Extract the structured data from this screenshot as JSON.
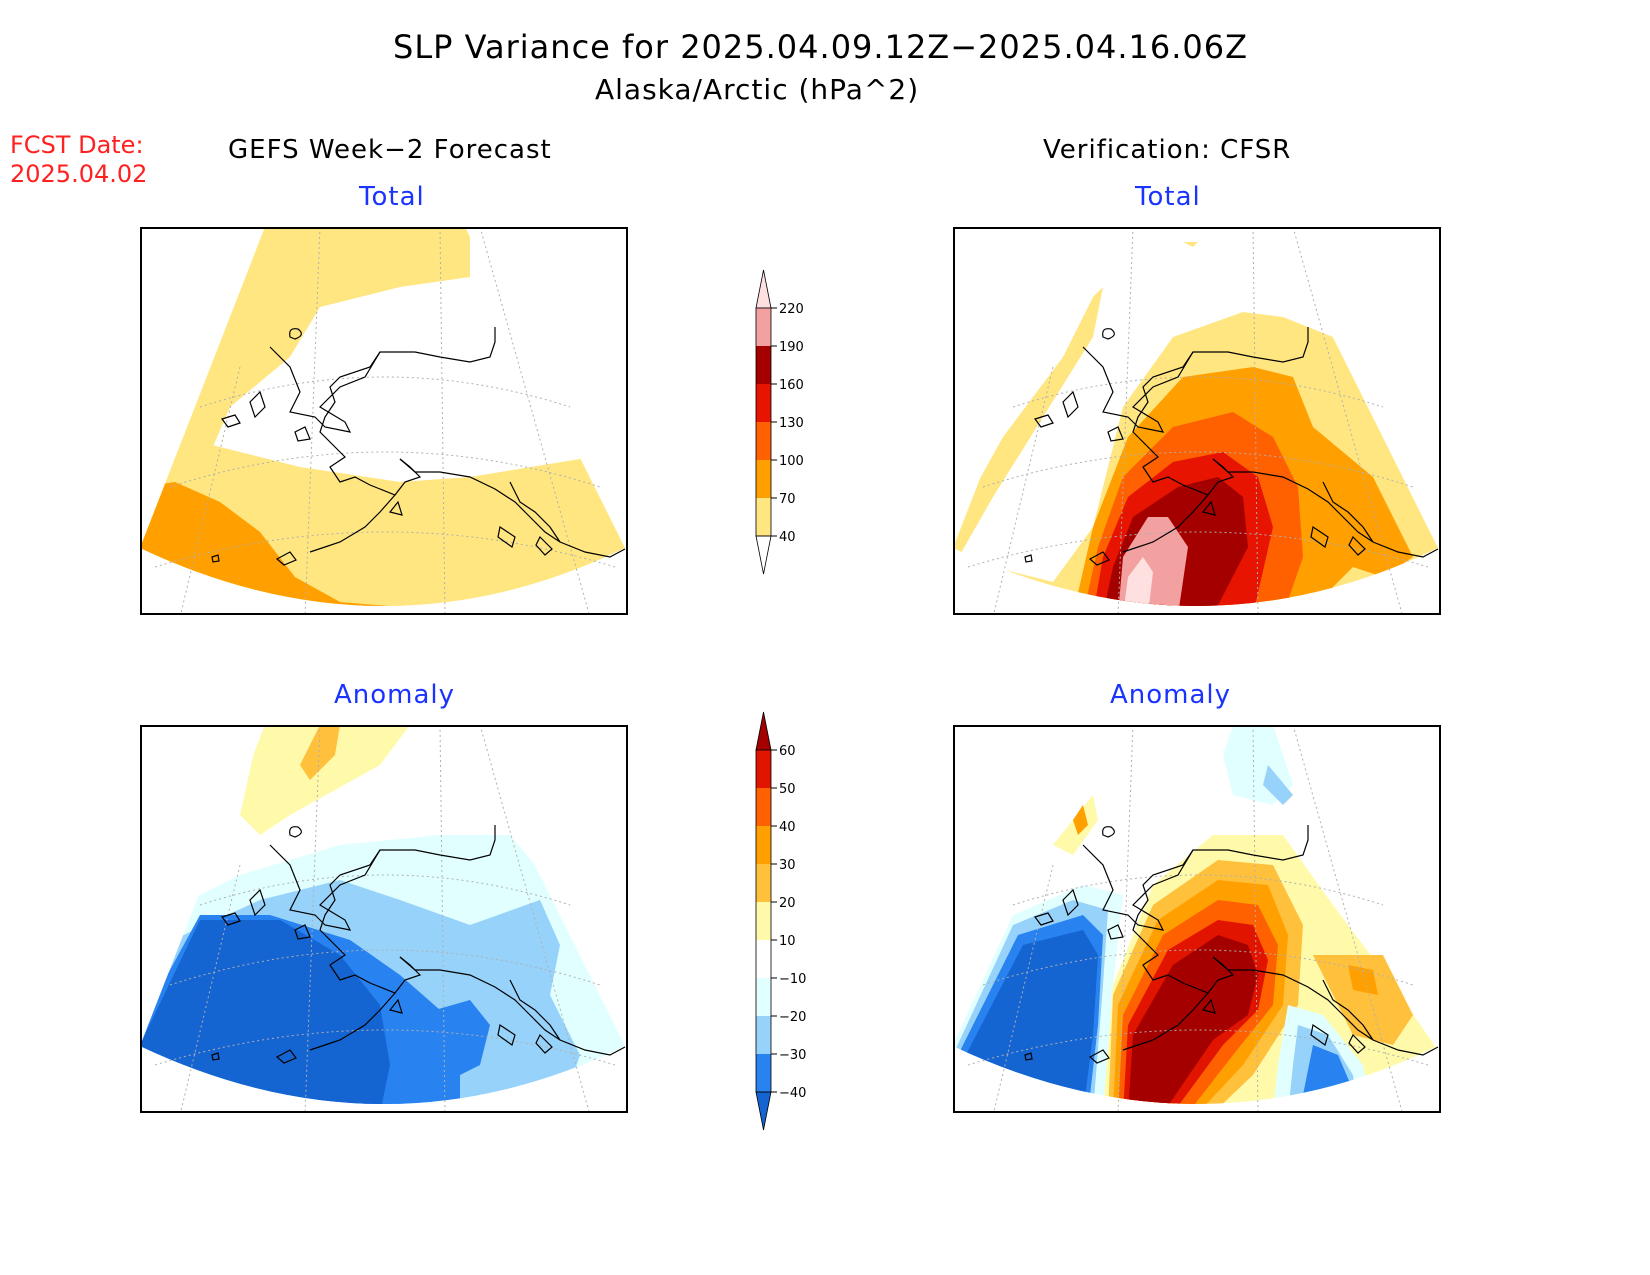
{
  "header": {
    "title": "SLP Variance for 2025.04.09.12Z−2025.04.16.06Z",
    "subtitle": "Alaska/Arctic (hPa^2)"
  },
  "forecast": {
    "label": "FCST Date:",
    "date": "2025.04.02"
  },
  "columns": {
    "left": "GEFS Week−2 Forecast",
    "right": "Verification: CFSR"
  },
  "panels": {
    "total_label": "Total",
    "anomaly_label": "Anomaly"
  },
  "colorbars": {
    "total": {
      "levels": [
        "40",
        "70",
        "100",
        "130",
        "160",
        "190",
        "220"
      ],
      "colors": [
        "#ffffff",
        "#ffe680",
        "#ffa000",
        "#ff6000",
        "#e61400",
        "#a50000",
        "#f2a0a0",
        "#ffe0e0"
      ]
    },
    "anomaly": {
      "levels": [
        "−40",
        "−30",
        "−20",
        "−10",
        "10",
        "20",
        "30",
        "40",
        "50",
        "60"
      ],
      "colors": [
        "#1464d2",
        "#2882f0",
        "#96d2fa",
        "#e1ffff",
        "#ffffff",
        "#fffaaa",
        "#ffc03c",
        "#ffa000",
        "#ff6000",
        "#e11400",
        "#a50000"
      ]
    }
  }
}
